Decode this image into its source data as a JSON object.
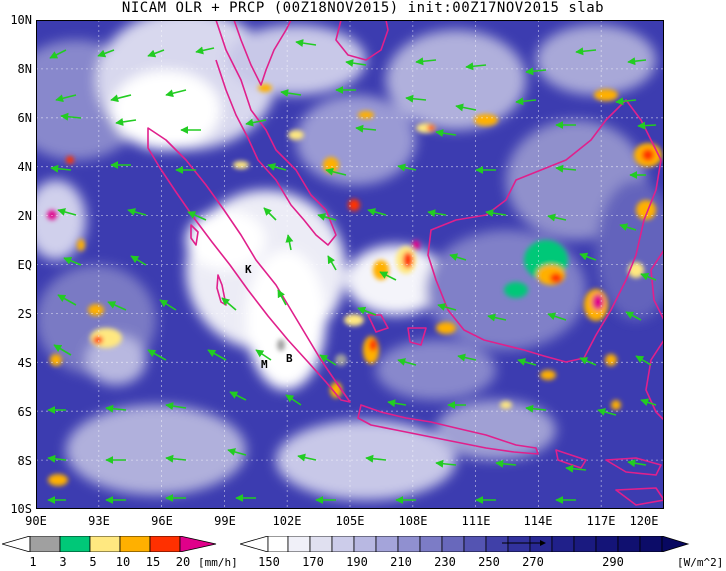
{
  "title": "NICAM OLR + PRCP (00Z18NOV2015) init:00Z17NOV2015 slab",
  "lat_labels": [
    "10N",
    "8N",
    "6N",
    "4N",
    "2N",
    "EQ",
    "2S",
    "4S",
    "6S",
    "8S",
    "10S"
  ],
  "lon_labels": [
    "90E",
    "93E",
    "96E",
    "99E",
    "102E",
    "105E",
    "108E",
    "111E",
    "114E",
    "117E",
    "120E"
  ],
  "map_labels": {
    "K": "K",
    "M": "M",
    "B": "B"
  },
  "prcp_colorbar": {
    "labels": [
      "1",
      "3",
      "5",
      "10",
      "15",
      "20"
    ],
    "unit": "[mm/h]",
    "colors": [
      "#a0a0a0",
      "#00c878",
      "#ffe880",
      "#ffb000",
      "#ff3000",
      "#e0008a"
    ]
  },
  "olr_colorbar": {
    "labels": [
      "150",
      "170",
      "190",
      "210",
      "230",
      "250",
      "270",
      "290"
    ],
    "unit": "[W/m^2]",
    "colors": [
      "#ffffff",
      "#e8e8f4",
      "#cccce8",
      "#acacdc",
      "#8c8cd0",
      "#6c6cc0",
      "#4848b0",
      "#282898",
      "#141478"
    ]
  },
  "colors": {
    "coastline": "#e0208c",
    "wind": "#22cc22",
    "ocean_clear": "#3c3cb0"
  }
}
